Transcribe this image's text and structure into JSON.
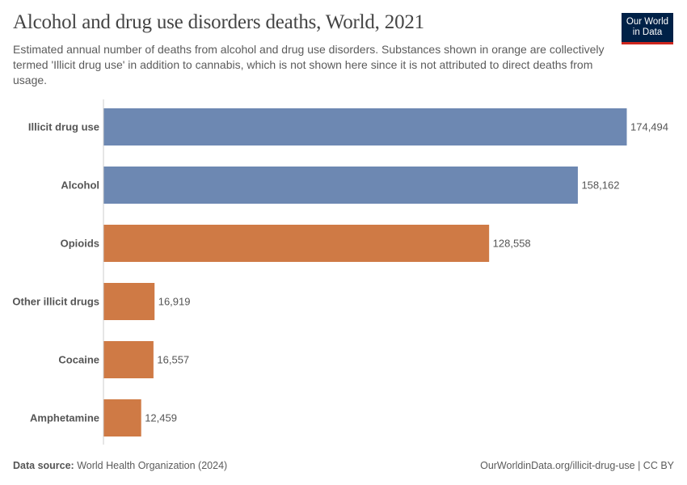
{
  "header": {
    "title": "Alcohol and drug use disorders deaths, World, 2021",
    "subtitle": "Estimated annual number of deaths from alcohol and drug use disorders. Substances shown in orange are collectively termed 'Illicit drug use' in addition to cannabis, which is not shown here since it is not attributed to direct deaths from usage.",
    "logo": "Our World in Data"
  },
  "footer": {
    "source_label": "Data source:",
    "source": "World Health Organization (2024)",
    "url": "OurWorldinData.org/illicit-drug-use | CC BY"
  },
  "colors": {
    "blue": "#6d88b2",
    "orange": "#cf7a45"
  },
  "chart_data": {
    "type": "bar",
    "orientation": "horizontal",
    "title": "Alcohol and drug use disorders deaths, World, 2021",
    "categories": [
      "Illicit drug use",
      "Alcohol",
      "Opioids",
      "Other illicit drugs",
      "Cocaine",
      "Amphetamine"
    ],
    "values": [
      174494,
      158162,
      128558,
      16919,
      16557,
      12459
    ],
    "labels": [
      "174,494",
      "158,162",
      "128,558",
      "16,919",
      "16,557",
      "12,459"
    ],
    "bar_colors": [
      "#6d88b2",
      "#6d88b2",
      "#cf7a45",
      "#cf7a45",
      "#cf7a45",
      "#cf7a45"
    ],
    "xlim": [
      0,
      174494
    ],
    "grid": false
  }
}
